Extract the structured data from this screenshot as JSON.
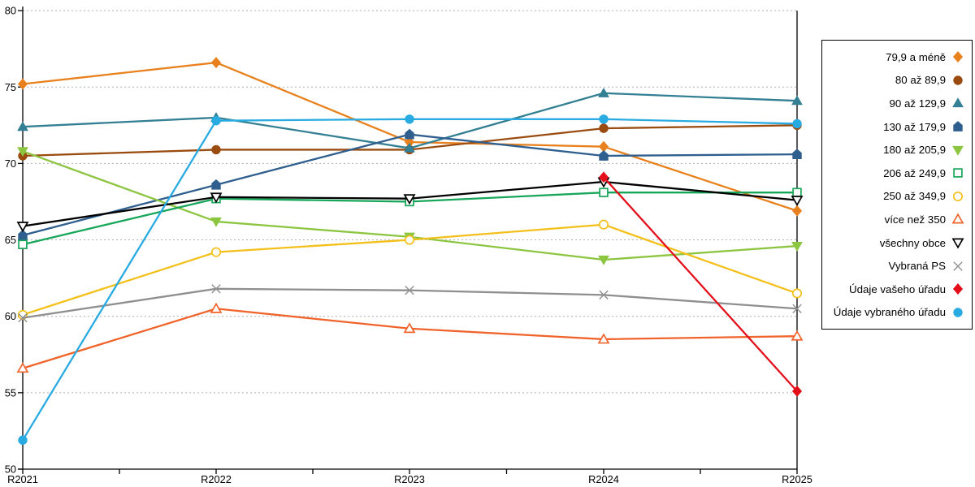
{
  "chart_data": {
    "type": "line",
    "title": "",
    "xlabel": "",
    "ylabel": "",
    "categories": [
      "R2021",
      "R2022",
      "R2023",
      "R2024",
      "R2025"
    ],
    "ylim": [
      50,
      80
    ],
    "y_ticks": [
      80,
      75,
      70,
      65,
      60,
      55,
      50
    ],
    "grid": "horizontal-dotted",
    "legend_position": "right-box",
    "axis_color": "#000000",
    "gridline_color": "#b0b0b0",
    "series": [
      {
        "name": "79,9 a méně",
        "marker": "diamond",
        "fill": "solid",
        "color": "#E8811D",
        "values": [
          75.2,
          76.6,
          71.4,
          71.1,
          66.9
        ]
      },
      {
        "name": "80 až 89,9",
        "marker": "circle",
        "fill": "solid",
        "color": "#9A4B10",
        "values": [
          70.5,
          70.9,
          70.9,
          72.3,
          72.5
        ]
      },
      {
        "name": "90 až 129,9",
        "marker": "triangle-up",
        "fill": "solid",
        "color": "#337F93",
        "values": [
          72.4,
          73.0,
          71.0,
          74.6,
          74.1
        ]
      },
      {
        "name": "130 až 179,9",
        "marker": "pentagon",
        "fill": "solid",
        "color": "#2F5F8F",
        "values": [
          65.3,
          68.6,
          71.9,
          70.5,
          70.6
        ]
      },
      {
        "name": "180 až 205,9",
        "marker": "triangle-down",
        "fill": "solid",
        "color": "#8CC540",
        "values": [
          70.8,
          66.2,
          65.2,
          63.7,
          64.6
        ]
      },
      {
        "name": "206 až 249,9",
        "marker": "square",
        "fill": "open",
        "color": "#17A65A",
        "values": [
          64.7,
          67.7,
          67.5,
          68.1,
          68.1
        ]
      },
      {
        "name": "250 až 349,9",
        "marker": "circle",
        "fill": "open",
        "color": "#F3C01B",
        "values": [
          60.1,
          64.2,
          65.0,
          66.0,
          61.5
        ]
      },
      {
        "name": "více než 350",
        "marker": "triangle-up",
        "fill": "open",
        "color": "#F0642C",
        "values": [
          56.6,
          60.5,
          59.2,
          58.5,
          58.7
        ]
      },
      {
        "name": "všechny obce",
        "marker": "triangle-down",
        "fill": "open",
        "color": "#000000",
        "values": [
          65.9,
          67.8,
          67.7,
          68.8,
          67.6
        ]
      },
      {
        "name": "Vybraná PS",
        "marker": "x",
        "fill": "open",
        "color": "#8F8F8F",
        "values": [
          59.9,
          61.8,
          61.7,
          61.4,
          60.5
        ]
      },
      {
        "name": "Údaje vašeho úřadu",
        "marker": "diamond",
        "fill": "solid",
        "color": "#E3101C",
        "values": [
          null,
          null,
          null,
          69.1,
          55.1
        ]
      },
      {
        "name": "Údaje vybraného úřadu",
        "marker": "circle",
        "fill": "solid",
        "color": "#29ABE2",
        "values": [
          51.9,
          72.8,
          72.9,
          72.9,
          72.6
        ]
      }
    ]
  }
}
